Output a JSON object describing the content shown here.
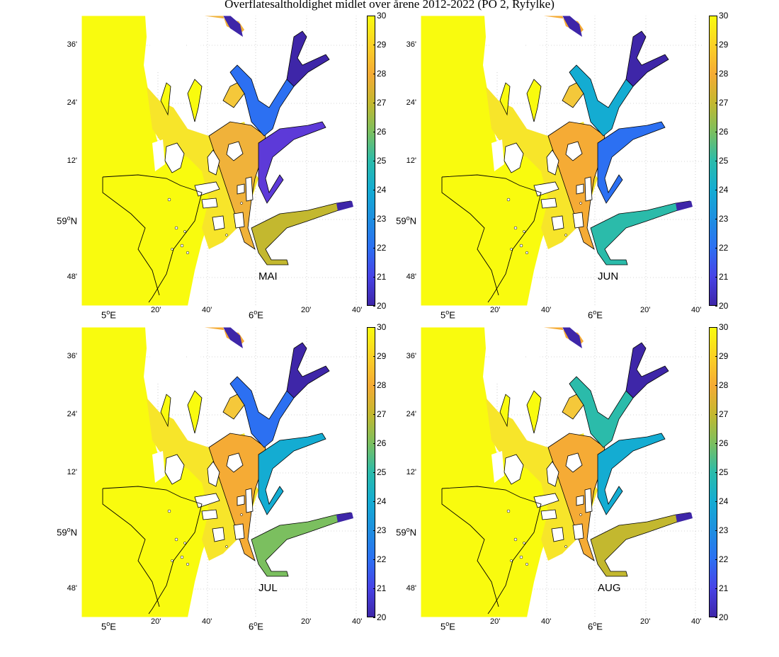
{
  "title": "Overflatesaltholdighet midlet over årene 2012-2022 (PO 2, Ryfylke)",
  "colorbar": {
    "min": 20,
    "max": 30,
    "ticks": [
      "30",
      "29",
      "28",
      "27",
      "26",
      "25",
      "24",
      "23",
      "22",
      "21",
      "20"
    ]
  },
  "lat_labels": [
    "36'",
    "24'",
    "12'",
    "59",
    "N",
    "48'"
  ],
  "lon_labels": [
    "5",
    "E",
    "20'",
    "40'",
    "6",
    "E",
    "20'",
    "40'"
  ],
  "deg": "o",
  "panels": [
    {
      "month": "MAI"
    },
    {
      "month": "JUN"
    },
    {
      "month": "JUL"
    },
    {
      "month": "AUG"
    }
  ],
  "colors": {
    "high": "#f9fb0e",
    "mid": "#f5ab35",
    "low": "#3e26a8",
    "teal": "#14acd2"
  }
}
